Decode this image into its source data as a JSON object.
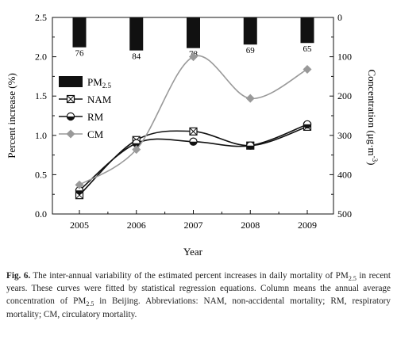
{
  "chart_data": {
    "type": "line",
    "x": [
      2005,
      2006,
      2007,
      2008,
      2009
    ],
    "xlabel": "Year",
    "ylabel_left": "Percent increase (%)",
    "ylabel_right_main": "Concentration (μg·m",
    "ylabel_right_sup": "-3",
    "ylabel_right_end": ")",
    "ylim_left": [
      0,
      2.5
    ],
    "yticks_left": [
      "0.0",
      "0.5",
      "1.0",
      "1.5",
      "2.0",
      "2.5"
    ],
    "ylim_right_inverted": [
      0,
      500
    ],
    "yticks_right": [
      "0",
      "100",
      "200",
      "300",
      "400",
      "500"
    ],
    "bars": {
      "name_main": "PM",
      "name_sub": "2.5",
      "axis": "right",
      "values": [
        76,
        84,
        78,
        69,
        65
      ],
      "labels": [
        "76",
        "84",
        "78",
        "69",
        "65"
      ],
      "color": "#111111"
    },
    "series": [
      {
        "name": "NAM",
        "marker": "boxed-x",
        "color": "#111111",
        "values": [
          0.24,
          0.94,
          1.05,
          0.87,
          1.11
        ]
      },
      {
        "name": "RM",
        "marker": "half-filled-circle",
        "color": "#111111",
        "values": [
          0.3,
          0.9,
          0.92,
          0.87,
          1.14
        ]
      },
      {
        "name": "CM",
        "marker": "diamond",
        "color": "#999999",
        "values": [
          0.37,
          0.82,
          2.0,
          1.47,
          1.84
        ]
      }
    ],
    "legend_position": "left"
  },
  "caption": {
    "lead": "Fig. 6.",
    "part1": "The inter-annual variability of the estimated percent increases in daily mortality of PM",
    "sub1": "2.5",
    "part2": " in recent years. These curves were fitted by statistical regression equations. Column means the annual average concentration of PM",
    "sub2": "2.5",
    "part3": " in Beijing. Abbreviations: NAM, non-accidental mortality; RM, respiratory mortality; CM, circulatory mortality."
  }
}
